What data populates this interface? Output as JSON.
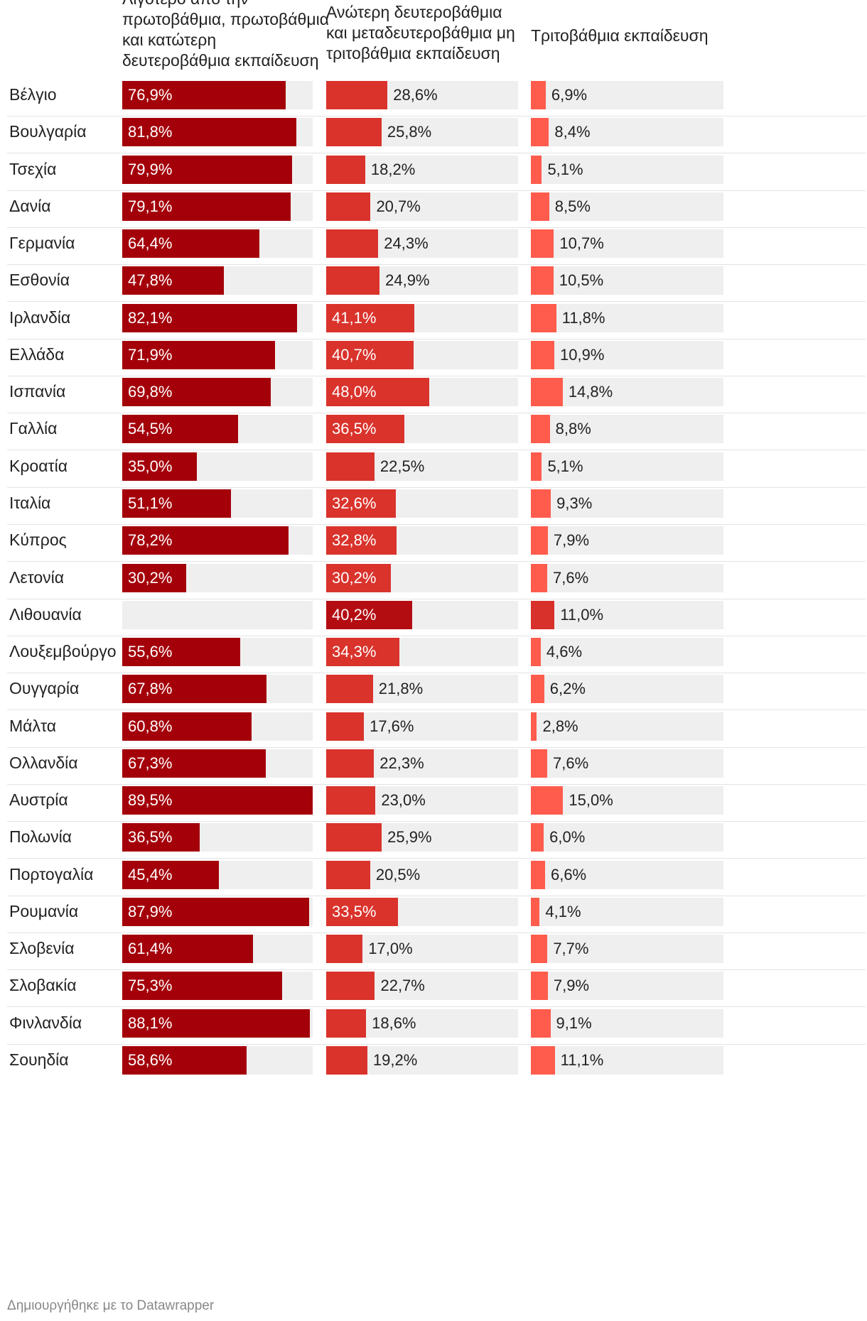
{
  "chart_data": {
    "type": "bar",
    "title": "",
    "footer": "Δημιουργήθηκε με το Datawrapper",
    "unit": "%",
    "colors": {
      "col1": "#a4000a",
      "col2": "#d9332c",
      "col3": "#ff5c4d",
      "highlight2": "#b30d12",
      "highlight3": "#d8302a",
      "track": "#efefef"
    },
    "series": [
      {
        "name": "Λιγότερο από την πρωτοβάθμια, πρωτοβάθμια και κατώτερη δευτεροβάθμια εκπαίδευση",
        "max": 89.5
      },
      {
        "name": "Ανώτερη δευτεροβάθμια και μεταδευτεροβάθμια μη τριτοβάθμια εκπαίδευση",
        "max": 89.5
      },
      {
        "name": "Τριτοβάθμια εκπαίδευση",
        "max": 89.5
      }
    ],
    "header_lines": [
      [
        "Λιγότερο από την",
        "πρωτοβάθμια, πρωτοβάθμια",
        "και κατώτερη",
        "δευτεροβάθμια εκπαίδευση"
      ],
      [
        "Ανώτερη δευτεροβάθμια",
        "και μεταδευτεροβάθμια μη",
        "τριτοβάθμια εκπαίδευση"
      ],
      [
        "Τριτοβάθμια εκπαίδευση"
      ]
    ],
    "rows": [
      {
        "country": "Βέλγιο",
        "values": [
          76.9,
          28.6,
          6.9
        ],
        "labels": [
          "76,9%",
          "28,6%",
          "6,9%"
        ]
      },
      {
        "country": "Βουλγαρία",
        "values": [
          81.8,
          25.8,
          8.4
        ],
        "labels": [
          "81,8%",
          "25,8%",
          "8,4%"
        ]
      },
      {
        "country": "Τσεχία",
        "values": [
          79.9,
          18.2,
          5.1
        ],
        "labels": [
          "79,9%",
          "18,2%",
          "5,1%"
        ]
      },
      {
        "country": "Δανία",
        "values": [
          79.1,
          20.7,
          8.5
        ],
        "labels": [
          "79,1%",
          "20,7%",
          "8,5%"
        ]
      },
      {
        "country": "Γερμανία",
        "values": [
          64.4,
          24.3,
          10.7
        ],
        "labels": [
          "64,4%",
          "24,3%",
          "10,7%"
        ]
      },
      {
        "country": "Εσθονία",
        "values": [
          47.8,
          24.9,
          10.5
        ],
        "labels": [
          "47,8%",
          "24,9%",
          "10,5%"
        ]
      },
      {
        "country": "Ιρλανδία",
        "values": [
          82.1,
          41.1,
          11.8
        ],
        "labels": [
          "82,1%",
          "41,1%",
          "11,8%"
        ]
      },
      {
        "country": "Ελλάδα",
        "values": [
          71.9,
          40.7,
          10.9
        ],
        "labels": [
          "71,9%",
          "40,7%",
          "10,9%"
        ]
      },
      {
        "country": "Ισπανία",
        "values": [
          69.8,
          48.0,
          14.8
        ],
        "labels": [
          "69,8%",
          "48,0%",
          "14,8%"
        ]
      },
      {
        "country": "Γαλλία",
        "values": [
          54.5,
          36.5,
          8.8
        ],
        "labels": [
          "54,5%",
          "36,5%",
          "8,8%"
        ]
      },
      {
        "country": "Κροατία",
        "values": [
          35.0,
          22.5,
          5.1
        ],
        "labels": [
          "35,0%",
          "22,5%",
          "5,1%"
        ]
      },
      {
        "country": "Ιταλία",
        "values": [
          51.1,
          32.6,
          9.3
        ],
        "labels": [
          "51,1%",
          "32,6%",
          "9,3%"
        ]
      },
      {
        "country": "Κύπρος",
        "values": [
          78.2,
          32.8,
          7.9
        ],
        "labels": [
          "78,2%",
          "32,8%",
          "7,9%"
        ]
      },
      {
        "country": "Λετονία",
        "values": [
          30.2,
          30.2,
          7.6
        ],
        "labels": [
          "30,2%",
          "30,2%",
          "7,6%"
        ]
      },
      {
        "country": "Λιθουανία",
        "values": [
          null,
          40.2,
          11.0
        ],
        "labels": [
          "",
          "40,2%",
          "11,0%"
        ],
        "highlight": true
      },
      {
        "country": "Λουξεμβούργο",
        "values": [
          55.6,
          34.3,
          4.6
        ],
        "labels": [
          "55,6%",
          "34,3%",
          "4,6%"
        ]
      },
      {
        "country": "Ουγγαρία",
        "values": [
          67.8,
          21.8,
          6.2
        ],
        "labels": [
          "67,8%",
          "21,8%",
          "6,2%"
        ]
      },
      {
        "country": "Μάλτα",
        "values": [
          60.8,
          17.6,
          2.8
        ],
        "labels": [
          "60,8%",
          "17,6%",
          "2,8%"
        ]
      },
      {
        "country": "Ολλανδία",
        "values": [
          67.3,
          22.3,
          7.6
        ],
        "labels": [
          "67,3%",
          "22,3%",
          "7,6%"
        ]
      },
      {
        "country": "Αυστρία",
        "values": [
          89.5,
          23.0,
          15.0
        ],
        "labels": [
          "89,5%",
          "23,0%",
          "15,0%"
        ]
      },
      {
        "country": "Πολωνία",
        "values": [
          36.5,
          25.9,
          6.0
        ],
        "labels": [
          "36,5%",
          "25,9%",
          "6,0%"
        ]
      },
      {
        "country": "Πορτογαλία",
        "values": [
          45.4,
          20.5,
          6.6
        ],
        "labels": [
          "45,4%",
          "20,5%",
          "6,6%"
        ]
      },
      {
        "country": "Ρουμανία",
        "values": [
          87.9,
          33.5,
          4.1
        ],
        "labels": [
          "87,9%",
          "33,5%",
          "4,1%"
        ]
      },
      {
        "country": "Σλοβενία",
        "values": [
          61.4,
          17.0,
          7.7
        ],
        "labels": [
          "61,4%",
          "17,0%",
          "7,7%"
        ]
      },
      {
        "country": "Σλοβακία",
        "values": [
          75.3,
          22.7,
          7.9
        ],
        "labels": [
          "75,3%",
          "22,7%",
          "7,9%"
        ]
      },
      {
        "country": "Φινλανδία",
        "values": [
          88.1,
          18.6,
          9.1
        ],
        "labels": [
          "88,1%",
          "18,6%",
          "9,1%"
        ]
      },
      {
        "country": "Σουηδία",
        "values": [
          58.6,
          19.2,
          11.1
        ],
        "labels": [
          "58,6%",
          "19,2%",
          "11,1%"
        ]
      }
    ]
  }
}
